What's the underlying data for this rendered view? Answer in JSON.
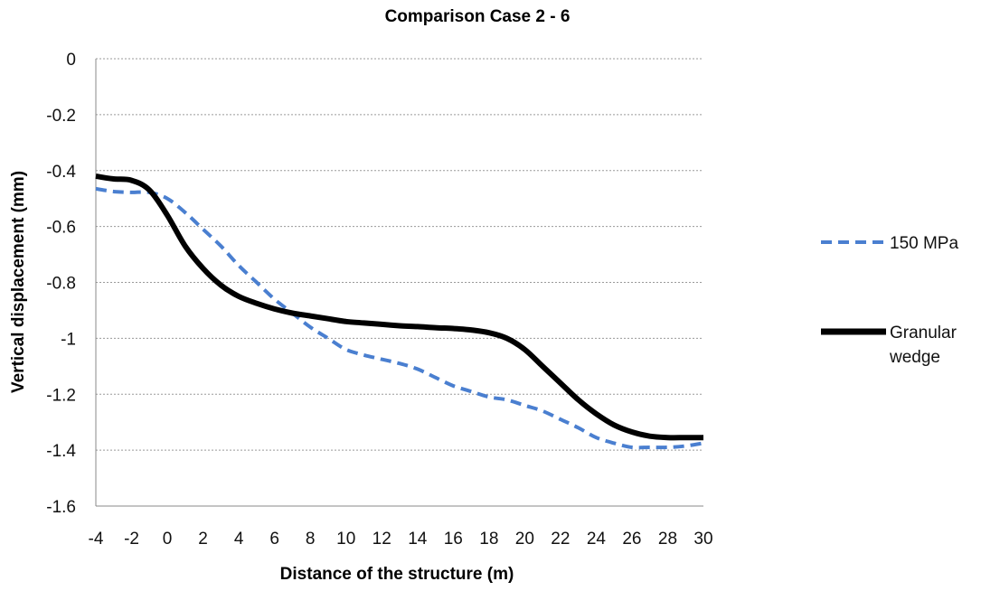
{
  "chart_data": {
    "type": "line",
    "title": "Comparison Case 2 - 6",
    "xlabel": "Distance of the structure (m)",
    "ylabel": "Vertical displacement (mm)",
    "xlim": [
      -4,
      30
    ],
    "ylim": [
      -1.6,
      0
    ],
    "xticks": [
      "-4",
      "-2",
      "0",
      "2",
      "4",
      "6",
      "8",
      "10",
      "12",
      "14",
      "16",
      "18",
      "20",
      "22",
      "24",
      "26",
      "28",
      "30"
    ],
    "yticks": [
      "0",
      "-0.2",
      "-0.4",
      "-0.6",
      "-0.8",
      "-1",
      "-1.2",
      "-1.4",
      "-1.6"
    ],
    "grid": "horizontal dotted",
    "legend_position": "right",
    "series": [
      {
        "name": "150 MPa",
        "color": "#4a7fd0",
        "style": "dashed",
        "x": [
          -4,
          -3,
          -2,
          -1,
          0,
          1,
          2,
          3,
          4,
          5,
          6,
          7,
          8,
          9,
          10,
          11,
          12,
          13,
          14,
          15,
          16,
          17,
          18,
          19,
          20,
          21,
          22,
          23,
          24,
          25,
          26,
          27,
          28,
          29,
          30
        ],
        "y": [
          -0.465,
          -0.475,
          -0.478,
          -0.478,
          -0.5,
          -0.55,
          -0.61,
          -0.67,
          -0.74,
          -0.8,
          -0.86,
          -0.91,
          -0.96,
          -1.0,
          -1.04,
          -1.06,
          -1.075,
          -1.09,
          -1.11,
          -1.14,
          -1.17,
          -1.19,
          -1.21,
          -1.22,
          -1.24,
          -1.26,
          -1.29,
          -1.32,
          -1.355,
          -1.375,
          -1.39,
          -1.39,
          -1.39,
          -1.385,
          -1.375
        ]
      },
      {
        "name": "Granular wedge",
        "color": "#000000",
        "style": "solid",
        "x": [
          -4,
          -3,
          -2,
          -1,
          0,
          1,
          2,
          3,
          4,
          5,
          6,
          7,
          8,
          9,
          10,
          11,
          12,
          13,
          14,
          15,
          16,
          17,
          18,
          19,
          20,
          21,
          22,
          23,
          24,
          25,
          26,
          27,
          28,
          29,
          30
        ],
        "y": [
          -0.42,
          -0.43,
          -0.435,
          -0.47,
          -0.56,
          -0.67,
          -0.75,
          -0.81,
          -0.85,
          -0.875,
          -0.895,
          -0.91,
          -0.92,
          -0.93,
          -0.94,
          -0.945,
          -0.95,
          -0.955,
          -0.958,
          -0.962,
          -0.965,
          -0.97,
          -0.98,
          -1.0,
          -1.04,
          -1.1,
          -1.16,
          -1.22,
          -1.27,
          -1.31,
          -1.335,
          -1.35,
          -1.355,
          -1.355,
          -1.355
        ]
      }
    ]
  }
}
